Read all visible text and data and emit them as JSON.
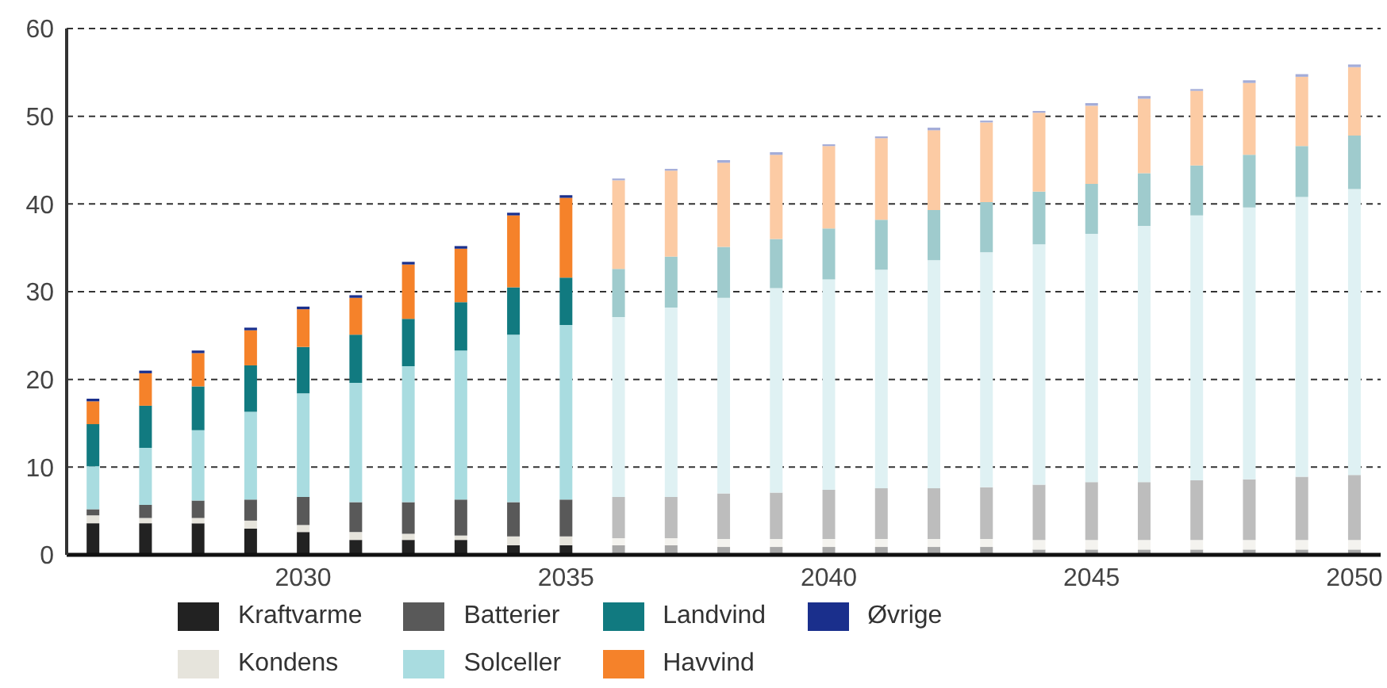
{
  "chart_data": {
    "type": "bar",
    "stacked": true,
    "categories": [
      null,
      null,
      null,
      null,
      "2030",
      null,
      null,
      null,
      null,
      "2035",
      null,
      null,
      null,
      null,
      "2040",
      null,
      null,
      null,
      null,
      "2045",
      null,
      null,
      null,
      null,
      "2050"
    ],
    "ylim": [
      0,
      60
    ],
    "yticks": [
      0,
      10,
      20,
      30,
      40,
      50,
      60
    ],
    "grid": "y",
    "legend": "bottom",
    "series": [
      {
        "name": "Kraftvarme",
        "color": "#222222",
        "colors": [
          "#222222",
          "#222222",
          "#222222",
          "#222222",
          "#222222",
          "#222222",
          "#222222",
          "#222222",
          "#222222",
          "#222222",
          "#a8a8a8",
          "#a8a8a8",
          "#a8a8a8",
          "#a8a8a8",
          "#a8a8a8",
          "#a8a8a8",
          "#a8a8a8",
          "#a8a8a8",
          "#a8a8a8",
          "#a8a8a8",
          "#a8a8a8",
          "#a8a8a8",
          "#a8a8a8",
          "#a8a8a8",
          "#a8a8a8"
        ],
        "values": [
          3.6,
          3.6,
          3.6,
          3.0,
          2.6,
          1.7,
          1.7,
          1.7,
          1.1,
          1.1,
          1.1,
          1.1,
          0.9,
          0.9,
          0.9,
          0.9,
          0.9,
          0.9,
          0.6,
          0.6,
          0.6,
          0.6,
          0.6,
          0.6,
          0.6
        ]
      },
      {
        "name": "Kondens",
        "color": "#e6e4dc",
        "colors": [
          "#e6e4dc",
          "#e6e4dc",
          "#e6e4dc",
          "#e6e4dc",
          "#e6e4dc",
          "#e6e4dc",
          "#e6e4dc",
          "#e6e4dc",
          "#e6e4dc",
          "#e6e4dc",
          "#f4f3ef",
          "#f4f3ef",
          "#f4f3ef",
          "#f4f3ef",
          "#f4f3ef",
          "#f4f3ef",
          "#f4f3ef",
          "#f4f3ef",
          "#f4f3ef",
          "#f4f3ef",
          "#f4f3ef",
          "#f4f3ef",
          "#f4f3ef",
          "#f4f3ef",
          "#f4f3ef"
        ],
        "values": [
          0.9,
          0.6,
          0.6,
          0.9,
          0.8,
          0.9,
          0.7,
          0.5,
          1.0,
          1.0,
          0.8,
          0.8,
          0.9,
          0.9,
          0.9,
          0.9,
          0.9,
          0.9,
          1.1,
          1.1,
          1.1,
          1.1,
          1.1,
          1.1,
          1.1
        ]
      },
      {
        "name": "Batterier",
        "color": "#595959",
        "colors": [
          "#595959",
          "#595959",
          "#595959",
          "#595959",
          "#595959",
          "#595959",
          "#595959",
          "#595959",
          "#595959",
          "#595959",
          "#bdbdbd",
          "#bdbdbd",
          "#bdbdbd",
          "#bdbdbd",
          "#bdbdbd",
          "#bdbdbd",
          "#bdbdbd",
          "#bdbdbd",
          "#bdbdbd",
          "#bdbdbd",
          "#bdbdbd",
          "#bdbdbd",
          "#bdbdbd",
          "#bdbdbd",
          "#bdbdbd"
        ],
        "values": [
          0.7,
          1.5,
          2.0,
          2.4,
          3.2,
          3.4,
          3.6,
          4.1,
          3.9,
          4.2,
          4.7,
          4.7,
          5.2,
          5.3,
          5.6,
          5.8,
          5.8,
          5.9,
          6.3,
          6.6,
          6.6,
          6.8,
          6.9,
          7.2,
          7.4
        ]
      },
      {
        "name": "Solceller",
        "color": "#a9dce0",
        "colors": [
          "#a9dce0",
          "#a9dce0",
          "#a9dce0",
          "#a9dce0",
          "#a9dce0",
          "#a9dce0",
          "#a9dce0",
          "#a9dce0",
          "#a9dce0",
          "#a9dce0",
          "#dff1f3",
          "#dff1f3",
          "#dff1f3",
          "#dff1f3",
          "#dff1f3",
          "#dff1f3",
          "#dff1f3",
          "#dff1f3",
          "#dff1f3",
          "#dff1f3",
          "#dff1f3",
          "#dff1f3",
          "#dff1f3",
          "#dff1f3",
          "#dff1f3"
        ],
        "values": [
          4.9,
          6.5,
          8.0,
          10.0,
          11.8,
          13.6,
          15.5,
          17.0,
          19.1,
          19.9,
          20.5,
          21.6,
          22.3,
          23.3,
          24.0,
          24.9,
          26.0,
          26.8,
          27.4,
          28.3,
          29.2,
          30.2,
          31.0,
          31.9,
          32.6
        ]
      },
      {
        "name": "Landvind",
        "color": "#117a80",
        "colors": [
          "#117a80",
          "#117a80",
          "#117a80",
          "#117a80",
          "#117a80",
          "#117a80",
          "#117a80",
          "#117a80",
          "#117a80",
          "#117a80",
          "#9fcbcd",
          "#9fcbcd",
          "#9fcbcd",
          "#9fcbcd",
          "#9fcbcd",
          "#9fcbcd",
          "#9fcbcd",
          "#9fcbcd",
          "#9fcbcd",
          "#9fcbcd",
          "#9fcbcd",
          "#9fcbcd",
          "#9fcbcd",
          "#9fcbcd",
          "#9fcbcd"
        ],
        "values": [
          4.8,
          4.8,
          5.0,
          5.3,
          5.3,
          5.5,
          5.4,
          5.5,
          5.4,
          5.4,
          5.5,
          5.8,
          5.8,
          5.6,
          5.8,
          5.7,
          5.7,
          5.7,
          6.0,
          5.7,
          6.0,
          5.7,
          6.0,
          5.8,
          6.1
        ]
      },
      {
        "name": "Havvind",
        "color": "#f5822a",
        "colors": [
          "#f5822a",
          "#f5822a",
          "#f5822a",
          "#f5822a",
          "#f5822a",
          "#f5822a",
          "#f5822a",
          "#f5822a",
          "#f5822a",
          "#f5822a",
          "#fccba4",
          "#fccba4",
          "#fccba4",
          "#fccba4",
          "#fccba4",
          "#fccba4",
          "#fccba4",
          "#fccba4",
          "#fccba4",
          "#fccba4",
          "#fccba4",
          "#fccba4",
          "#fccba4",
          "#fccba4",
          "#fccba4"
        ],
        "values": [
          2.6,
          3.7,
          3.8,
          4.0,
          4.3,
          4.2,
          6.2,
          6.1,
          8.2,
          9.1,
          10.1,
          9.8,
          9.6,
          9.6,
          9.4,
          9.3,
          9.1,
          9.1,
          9.0,
          8.9,
          8.5,
          8.5,
          8.2,
          7.9,
          7.8
        ]
      },
      {
        "name": "Øvrige",
        "color": "#1a2f8c",
        "colors": [
          "#1a2f8c",
          "#1a2f8c",
          "#1a2f8c",
          "#1a2f8c",
          "#1a2f8c",
          "#1a2f8c",
          "#1a2f8c",
          "#1a2f8c",
          "#1a2f8c",
          "#1a2f8c",
          "#a3acd8",
          "#a3acd8",
          "#a3acd8",
          "#a3acd8",
          "#a3acd8",
          "#a3acd8",
          "#a3acd8",
          "#a3acd8",
          "#a3acd8",
          "#a3acd8",
          "#a3acd8",
          "#a3acd8",
          "#a3acd8",
          "#a3acd8",
          "#a3acd8"
        ],
        "values": [
          0.3,
          0.3,
          0.3,
          0.3,
          0.3,
          0.3,
          0.3,
          0.3,
          0.3,
          0.3,
          0.2,
          0.2,
          0.3,
          0.3,
          0.2,
          0.2,
          0.3,
          0.2,
          0.2,
          0.3,
          0.3,
          0.2,
          0.3,
          0.3,
          0.3
        ]
      }
    ]
  }
}
